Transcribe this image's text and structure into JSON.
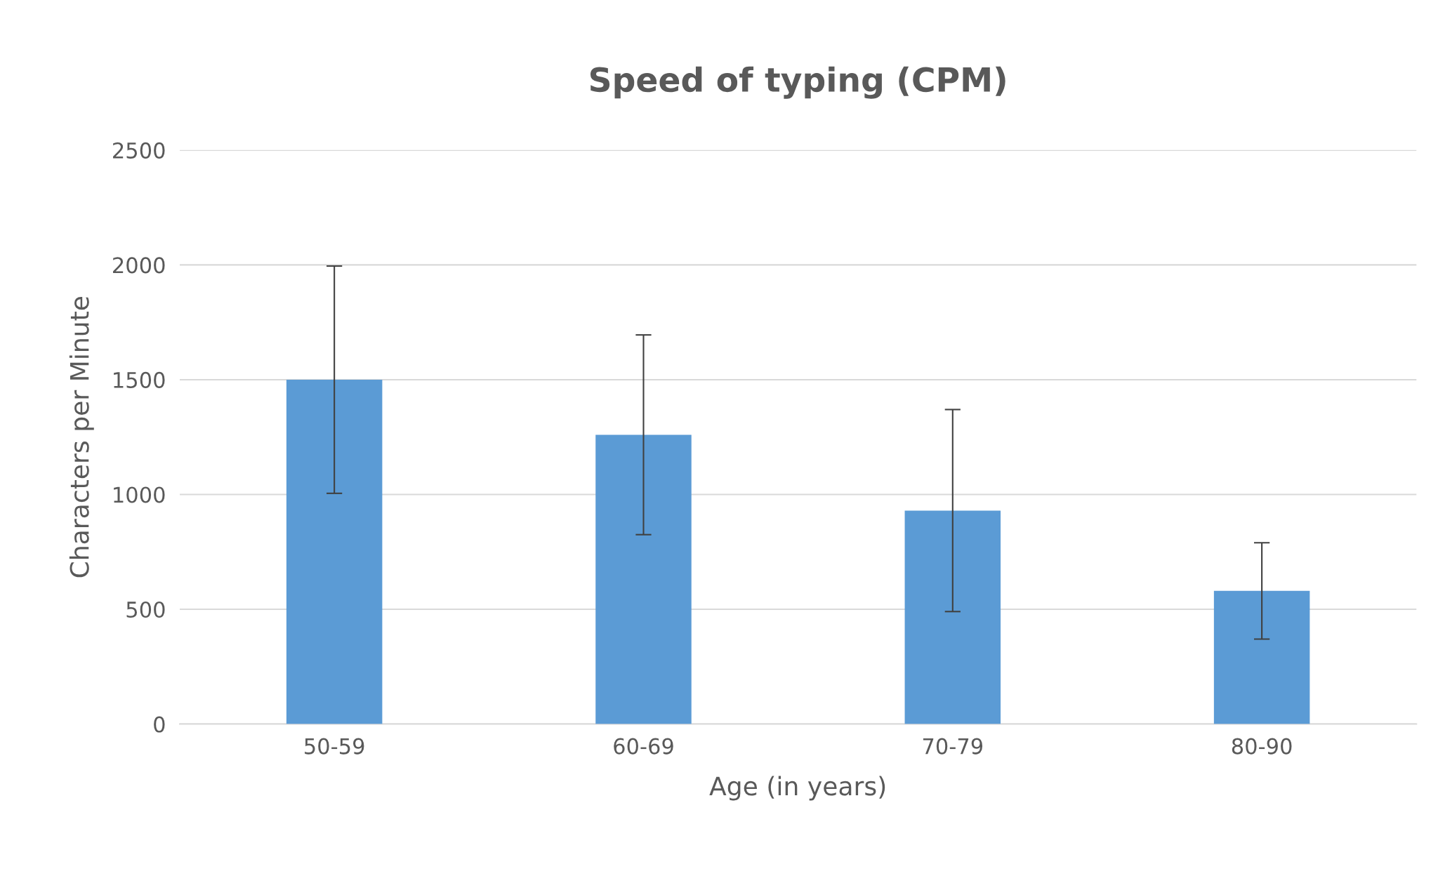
{
  "chart_data": {
    "type": "bar",
    "title": "Speed of typing (CPM)",
    "xlabel": "Age (in years)",
    "ylabel": "Characters per Minute",
    "categories": [
      "50-59",
      "60-69",
      "70-79",
      "80-90"
    ],
    "values": [
      1500,
      1260,
      930,
      580
    ],
    "errors": [
      495,
      435,
      440,
      210
    ],
    "color": "#5b9bd5",
    "ylim": [
      0,
      2500
    ],
    "yticks": [
      0,
      500,
      1000,
      1500,
      2000,
      2500
    ],
    "grid": "y",
    "legend": false
  }
}
